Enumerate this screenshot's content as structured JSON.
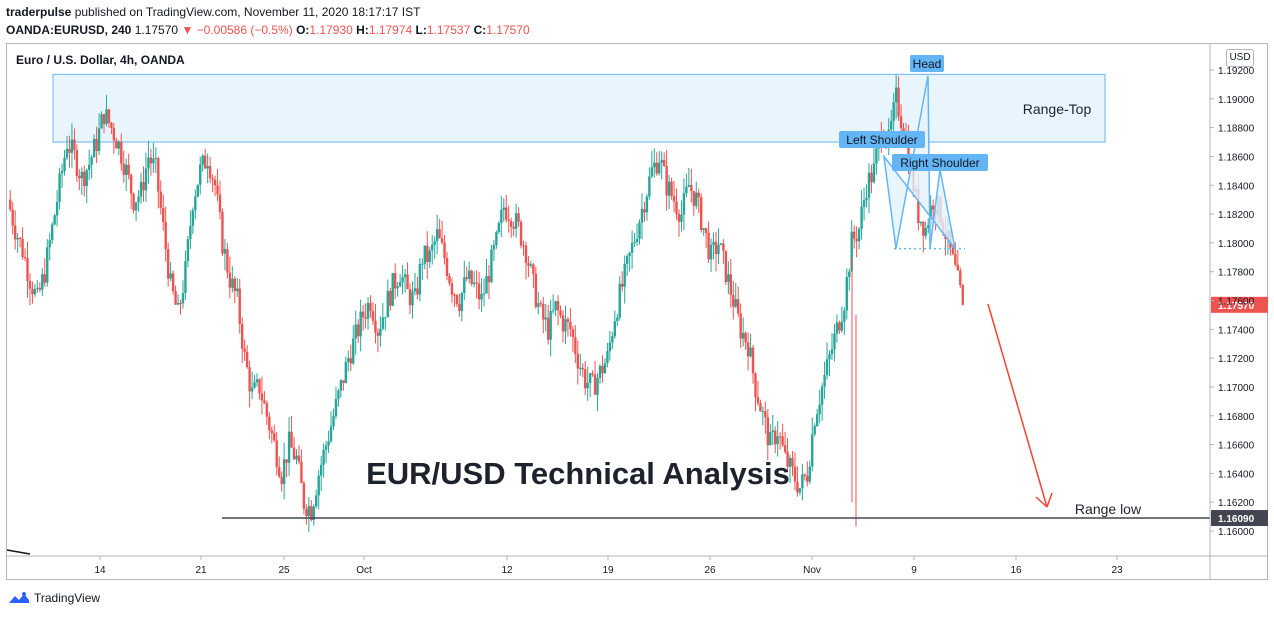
{
  "header": {
    "author": "traderpulse",
    "published_text": " published on TradingView.com, November 11, 2020 18:17:17 IST",
    "symbol_line": "OANDA:EURUSD, 240",
    "last": "1.17570",
    "change": "▼ −0.00586 (−0.5%)",
    "o_label": "O:",
    "o_value": "1.17930",
    "h_label": "H:",
    "h_value": "1.17974",
    "l_label": "L:",
    "l_value": "1.17537",
    "c_label": "C:",
    "c_value": "1.17570"
  },
  "chart_title": "Euro / U.S. Dollar, 4h, OANDA",
  "currency": "USD",
  "watermark_title": "EUR/USD Technical Analysis",
  "footer_brand": "TradingView",
  "colors": {
    "up": "#26a69a",
    "down": "#ef5350",
    "box_fill": "#e3f2fd",
    "box_stroke": "#64b5f6",
    "label_bg": "#64b5f6",
    "arrow": "#f44336"
  },
  "chart_data": {
    "type": "candlestick",
    "title": "Euro / U.S. Dollar, 4h, OANDA",
    "y_ticks": [
      "1.19200",
      "1.19000",
      "1.18800",
      "1.18600",
      "1.18400",
      "1.18200",
      "1.18000",
      "1.17800",
      "1.17600",
      "1.17400",
      "1.17200",
      "1.17000",
      "1.16800",
      "1.16600",
      "1.16400",
      "1.16200",
      "1.16000"
    ],
    "x_ticks": [
      "14",
      "21",
      "25",
      "Oct",
      "12",
      "19",
      "26",
      "Nov",
      "9",
      "16",
      "23"
    ],
    "ylim": [
      1.159,
      1.1932
    ],
    "last_price_label": "1.17570",
    "support_price_label": "1.16090",
    "support_price": 1.1609,
    "annotations": [
      "Range-Top",
      "Head",
      "Left Shoulder",
      "Right Shoulder",
      "Range low"
    ],
    "range_top_box": [
      1.187,
      1.1917
    ],
    "neckline": 1.1796,
    "close_path": [
      1.183,
      1.181,
      1.1795,
      1.1775,
      1.176,
      1.178,
      1.181,
      1.184,
      1.187,
      1.186,
      1.1845,
      1.1855,
      1.187,
      1.189,
      1.188,
      1.1868,
      1.185,
      1.183,
      1.1835,
      1.186,
      1.185,
      1.181,
      1.177,
      1.175,
      1.178,
      1.183,
      1.185,
      1.186,
      1.184,
      1.18,
      1.1775,
      1.176,
      1.172,
      1.1695,
      1.17,
      1.168,
      1.166,
      1.164,
      1.166,
      1.165,
      1.162,
      1.1615,
      1.164,
      1.166,
      1.168,
      1.17,
      1.172,
      1.1735,
      1.175,
      1.176,
      1.174,
      1.1755,
      1.177,
      1.178,
      1.1765,
      1.176,
      1.179,
      1.179,
      1.1805,
      1.179,
      1.177,
      1.176,
      1.1775,
      1.177,
      1.176,
      1.178,
      1.18,
      1.1825,
      1.182,
      1.181,
      1.1795,
      1.177,
      1.175,
      1.174,
      1.1755,
      1.1745,
      1.174,
      1.172,
      1.1705,
      1.17,
      1.171,
      1.172,
      1.175,
      1.177,
      1.179,
      1.181,
      1.183,
      1.185,
      1.186,
      1.184,
      1.183,
      1.182,
      1.184,
      1.183,
      1.181,
      1.179,
      1.18,
      1.178,
      1.176,
      1.174,
      1.173,
      1.17,
      1.168,
      1.166,
      1.167,
      1.165,
      1.164,
      1.163,
      1.164,
      1.168,
      1.17,
      1.172,
      1.174,
      1.176,
      1.18,
      1.181,
      1.184,
      1.185,
      1.188,
      1.187,
      1.19,
      1.188,
      1.185,
      1.182,
      1.181,
      1.183,
      1.182,
      1.18,
      1.178,
      1.1757
    ]
  }
}
